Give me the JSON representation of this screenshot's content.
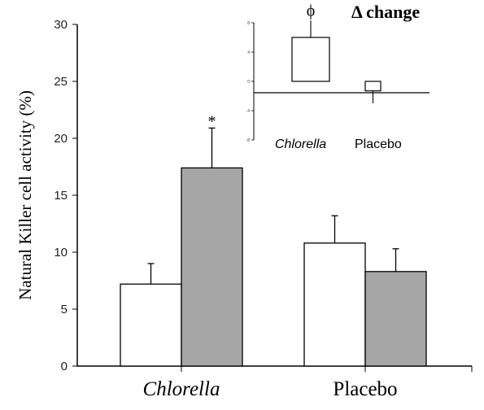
{
  "chart_data": [
    {
      "type": "bar",
      "title": "",
      "ylabel": "Natural Killer cell activity (%)",
      "xlabel": "",
      "ylim": [
        0,
        30
      ],
      "yticks": [
        0,
        5,
        10,
        15,
        20,
        25,
        30
      ],
      "categories": [
        "Chlorella",
        "Placebo"
      ],
      "category_italic": [
        true,
        false
      ],
      "series": [
        {
          "values": [
            7.2,
            10.8
          ],
          "errors": [
            1.8,
            2.4
          ],
          "color": "#ffffff"
        },
        {
          "values": [
            17.4,
            8.3
          ],
          "errors": [
            3.5,
            2.0
          ],
          "color": "#a6a6a6"
        }
      ],
      "annotations": [
        {
          "category": 0,
          "series": 1,
          "text": "*"
        }
      ]
    },
    {
      "type": "bar",
      "title": "Δ change",
      "ylim": [
        -8,
        8
      ],
      "yticks": [
        -8,
        -4,
        0,
        4,
        8
      ],
      "categories": [
        "Chlorella",
        "Placebo"
      ],
      "category_italic": [
        true,
        false
      ],
      "values": [
        6.0,
        -1.3
      ],
      "errors": [
        2.3,
        1.7
      ],
      "color": "#ffffff",
      "annotations": [
        {
          "category": 0,
          "text": "ϕ"
        }
      ]
    }
  ]
}
